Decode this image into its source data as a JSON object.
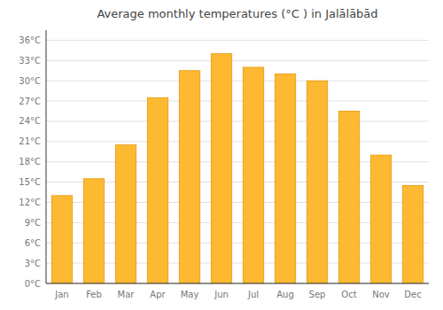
{
  "chart_data": {
    "type": "bar",
    "title": "Average monthly temperatures (°C ) in Jalālābād",
    "categories": [
      "Jan",
      "Feb",
      "Mar",
      "Apr",
      "May",
      "Jun",
      "Jul",
      "Aug",
      "Sep",
      "Oct",
      "Nov",
      "Dec"
    ],
    "values": [
      13.0,
      15.5,
      20.5,
      27.5,
      31.5,
      34.0,
      32.0,
      31.0,
      30.0,
      25.5,
      19.0,
      14.5
    ],
    "color": "#FDB931",
    "ylim": [
      0,
      37.5
    ],
    "yticks": [
      {
        "value": 0,
        "label": "0°C"
      },
      {
        "value": 3,
        "label": "3°C"
      },
      {
        "value": 6,
        "label": "6°C"
      },
      {
        "value": 9,
        "label": "9°C"
      },
      {
        "value": 12,
        "label": "12°C"
      },
      {
        "value": 15,
        "label": "15°C"
      },
      {
        "value": 18,
        "label": "18°C"
      },
      {
        "value": 21,
        "label": "21°C"
      },
      {
        "value": 24,
        "label": "24°C"
      },
      {
        "value": 27,
        "label": "27°C"
      },
      {
        "value": 30,
        "label": "30°C"
      },
      {
        "value": 33,
        "label": "33°C"
      },
      {
        "value": 36,
        "label": "36°C"
      }
    ],
    "grid": true
  }
}
